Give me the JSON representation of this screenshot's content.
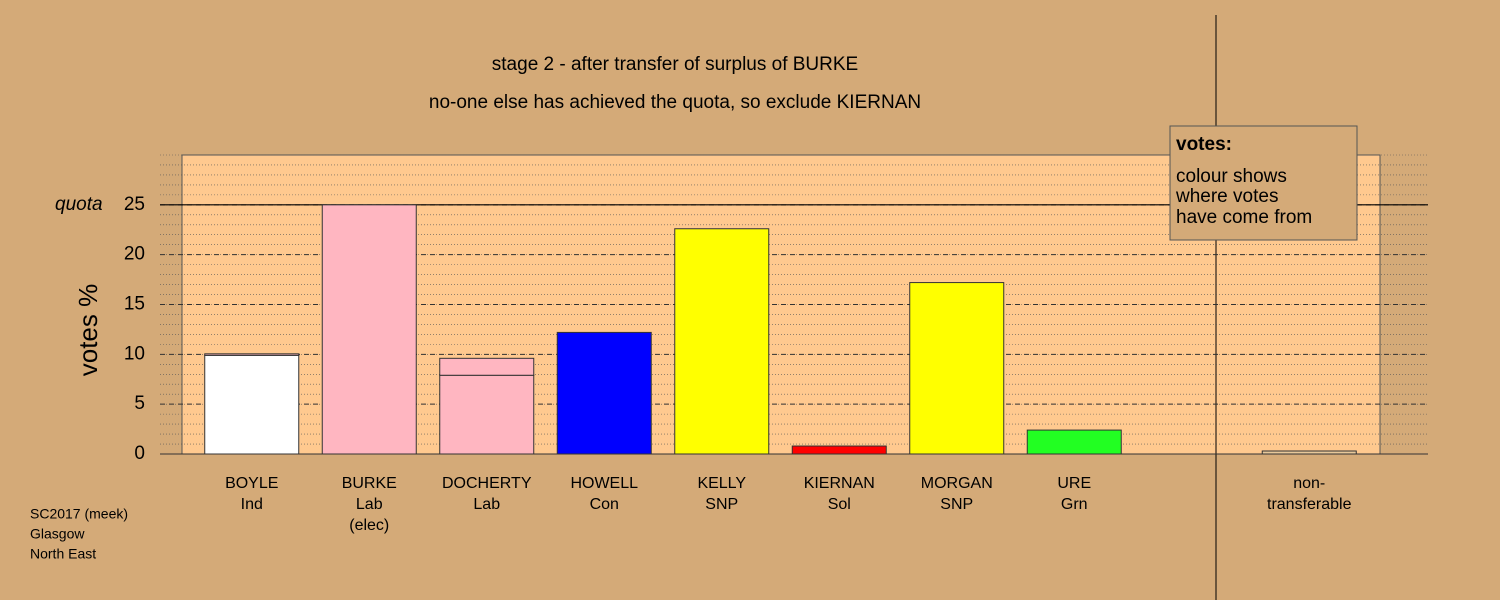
{
  "chart_data": {
    "type": "stacked-bar",
    "title": "stage 2 - after transfer of surplus of BURKE",
    "subtitle": "no-one else has achieved the quota, so exclude KIERNAN",
    "y_label": "votes %",
    "categories": [
      [
        "BOYLE",
        "Ind"
      ],
      [
        "BURKE",
        "Lab",
        "(elec)"
      ],
      [
        "DOCHERTY",
        "Lab"
      ],
      [
        "HOWELL",
        "Con"
      ],
      [
        "KELLY",
        "SNP"
      ],
      [
        "KIERNAN",
        "Sol"
      ],
      [
        "MORGAN",
        "SNP"
      ],
      [
        "URE",
        "Grn"
      ],
      null,
      [
        "non-",
        "transferable"
      ]
    ],
    "stacks": [
      [
        9.9,
        0.15
      ],
      [
        25
      ],
      [
        7.9,
        1.7
      ],
      [
        12.2
      ],
      [
        22.6
      ],
      [
        0.8
      ],
      [
        17.2
      ],
      [
        2.4
      ],
      null,
      [
        0.3
      ]
    ],
    "stack_colors": [
      [
        "#ffffff",
        "#ffb6c1"
      ],
      [
        "#ffb6c1"
      ],
      [
        "#ffb6c1",
        "#ffb6c1"
      ],
      [
        "#0000ff"
      ],
      [
        "#ffff00"
      ],
      [
        "#ff0000"
      ],
      [
        "#ffff00"
      ],
      [
        "#22ff22"
      ],
      null,
      [
        "#e8c89a"
      ]
    ],
    "ylim": [
      0,
      30
    ],
    "yticks": [
      0,
      5,
      10,
      15,
      20,
      25
    ],
    "minor_grid_step": 1,
    "grid": true,
    "quota": 25,
    "quota_label": "quota",
    "legend": {
      "title": "votes:",
      "lines": [
        "colour shows",
        "where votes",
        "have come from"
      ]
    },
    "footnote": [
      "SC2017 (meek)",
      "Glasgow",
      "North East"
    ]
  }
}
